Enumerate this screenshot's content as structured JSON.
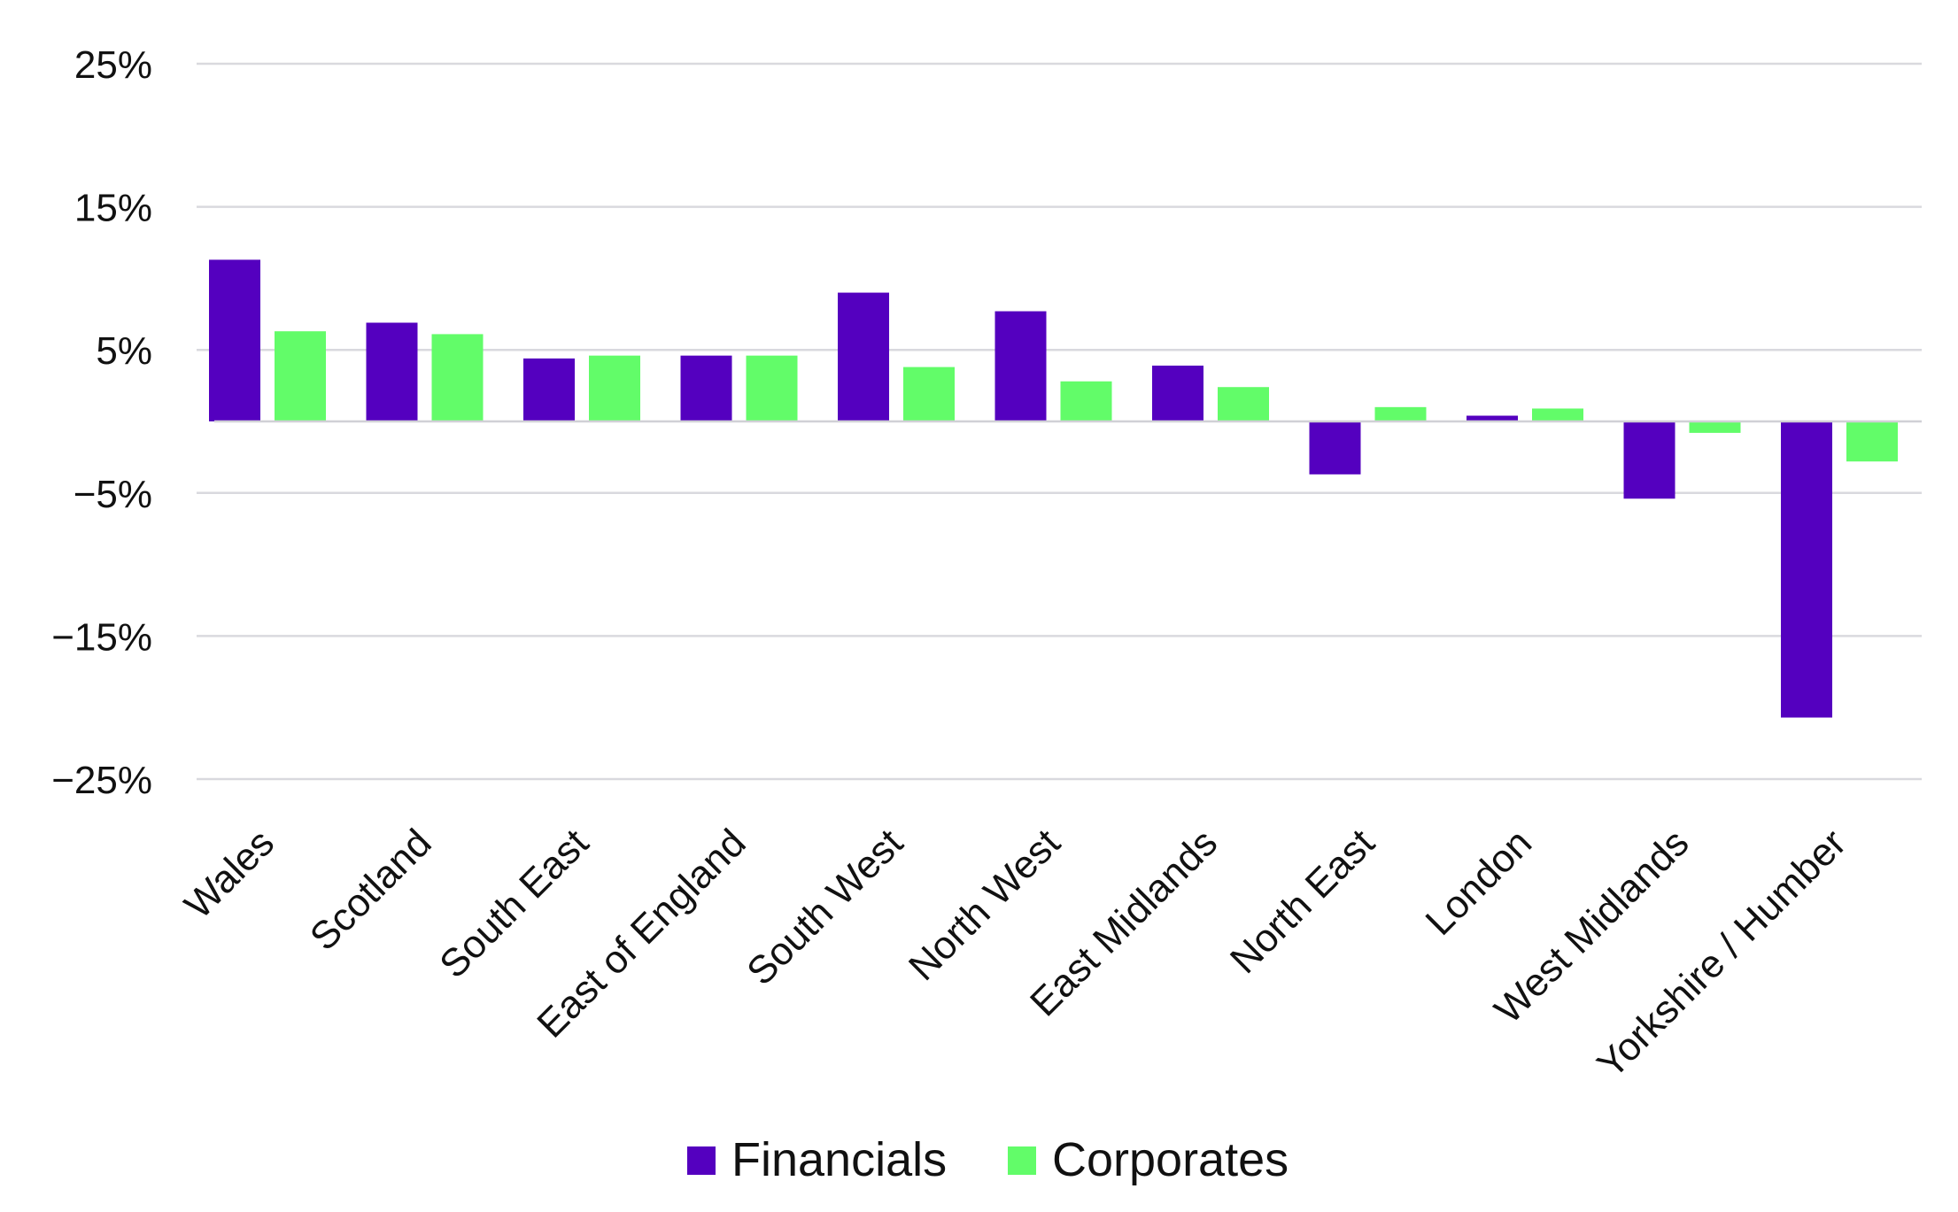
{
  "chart_data": {
    "type": "bar",
    "title": "",
    "xlabel": "",
    "ylabel": "",
    "ylim": [
      -25,
      25
    ],
    "yticks": [
      25,
      15,
      5,
      -5,
      -15,
      -25
    ],
    "ytick_labels": [
      "25%",
      "15%",
      "5%",
      "−5%",
      "−15%",
      "−25%"
    ],
    "grid": true,
    "legend_position": "bottom-center",
    "categories": [
      "Wales",
      "Scotland",
      "South East",
      "East of England",
      "South West",
      "North West",
      "East Midlands",
      "North East",
      "London",
      "West Midlands",
      "Yorkshire / Humber"
    ],
    "series": [
      {
        "name": "Financials",
        "color": "#5400BF",
        "values": [
          11.3,
          6.9,
          4.4,
          4.6,
          9.0,
          7.7,
          3.9,
          -3.7,
          0.4,
          -5.4,
          -20.7
        ]
      },
      {
        "name": "Corporates",
        "color": "#62FC69",
        "values": [
          6.3,
          6.1,
          4.6,
          4.6,
          3.8,
          2.8,
          2.4,
          1.0,
          0.9,
          -0.8,
          -2.8
        ]
      }
    ]
  }
}
